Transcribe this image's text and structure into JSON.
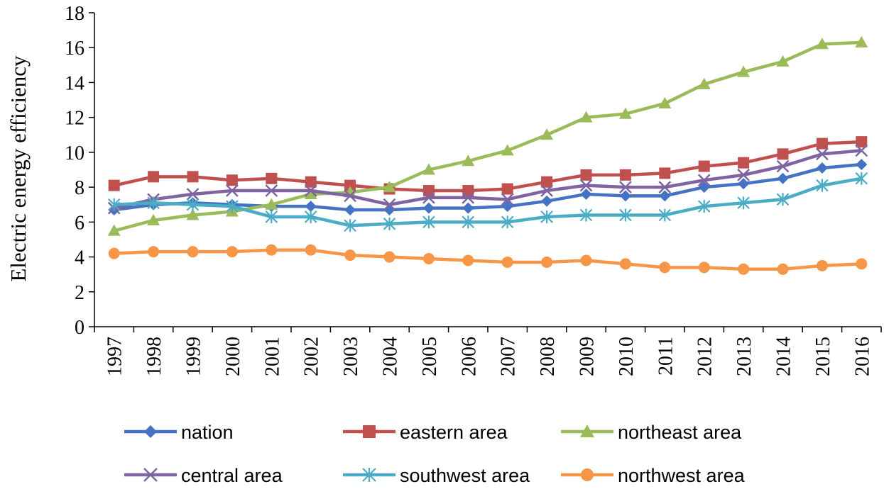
{
  "chart_data": {
    "type": "line",
    "title": "",
    "xlabel": "",
    "ylabel": "Electric energy efficiency",
    "ylim": [
      0,
      18
    ],
    "yticks": [
      0,
      2,
      4,
      6,
      8,
      10,
      12,
      14,
      16,
      18
    ],
    "categories": [
      "1997",
      "1998",
      "1999",
      "2000",
      "2001",
      "2002",
      "2003",
      "2004",
      "2005",
      "2006",
      "2007",
      "2008",
      "2009",
      "2010",
      "2011",
      "2012",
      "2013",
      "2014",
      "2015",
      "2016"
    ],
    "legend_position": "bottom",
    "grid": false,
    "series": [
      {
        "name": "nation",
        "color": "#4472C4",
        "marker": "diamond",
        "values": [
          6.7,
          7.0,
          7.1,
          7.0,
          6.9,
          6.9,
          6.7,
          6.7,
          6.8,
          6.8,
          6.9,
          7.2,
          7.6,
          7.5,
          7.5,
          8.0,
          8.2,
          8.5,
          9.1,
          9.3
        ]
      },
      {
        "name": "eastern area",
        "color": "#C0504D",
        "marker": "square",
        "values": [
          8.1,
          8.6,
          8.6,
          8.4,
          8.5,
          8.3,
          8.1,
          7.9,
          7.8,
          7.8,
          7.9,
          8.3,
          8.7,
          8.7,
          8.8,
          9.2,
          9.4,
          9.9,
          10.5,
          10.6
        ]
      },
      {
        "name": "northeast area",
        "color": "#9BBB59",
        "marker": "triangle",
        "values": [
          5.5,
          6.1,
          6.4,
          6.6,
          7.0,
          7.6,
          7.7,
          8.0,
          9.0,
          9.5,
          10.1,
          11.0,
          12.0,
          12.2,
          12.8,
          13.9,
          14.6,
          15.2,
          16.2,
          16.3
        ]
      },
      {
        "name": "central  area",
        "color": "#8064A2",
        "marker": "x",
        "values": [
          6.8,
          7.3,
          7.6,
          7.8,
          7.8,
          7.8,
          7.5,
          7.0,
          7.4,
          7.4,
          7.3,
          7.8,
          8.1,
          8.0,
          8.0,
          8.4,
          8.7,
          9.2,
          9.9,
          10.1
        ]
      },
      {
        "name": "southwest area",
        "color": "#4BACC6",
        "marker": "asterisk",
        "values": [
          7.0,
          7.1,
          7.0,
          6.9,
          6.3,
          6.3,
          5.8,
          5.9,
          6.0,
          6.0,
          6.0,
          6.3,
          6.4,
          6.4,
          6.4,
          6.9,
          7.1,
          7.3,
          8.1,
          8.5
        ]
      },
      {
        "name": "northwest area",
        "color": "#F79646",
        "marker": "circle",
        "values": [
          4.2,
          4.3,
          4.3,
          4.3,
          4.4,
          4.4,
          4.1,
          4.0,
          3.9,
          3.8,
          3.7,
          3.7,
          3.8,
          3.6,
          3.4,
          3.4,
          3.3,
          3.3,
          3.5,
          3.6
        ]
      }
    ]
  }
}
